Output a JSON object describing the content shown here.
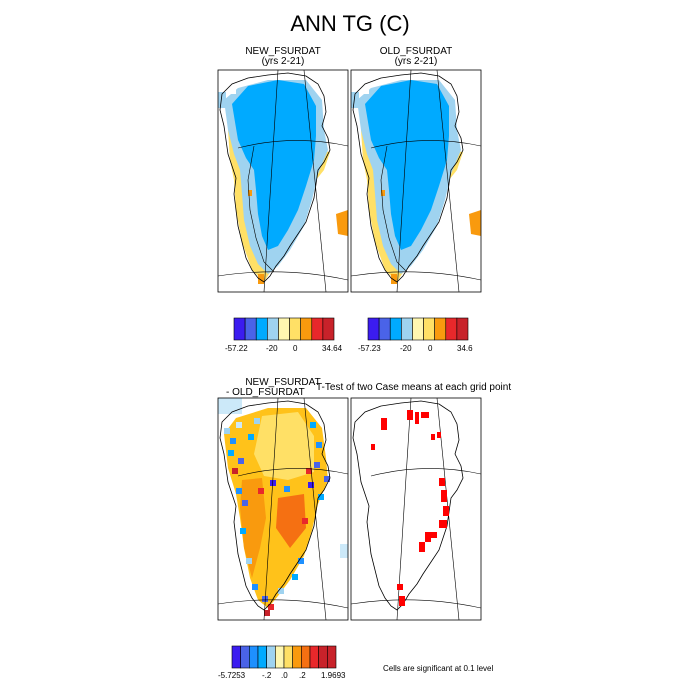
{
  "title": "ANN TG (C)",
  "colors": {
    "dark_blue": "#3b1cf0",
    "blue": "#4a63e8",
    "med_blue": "#1e90ff",
    "sky_blue": "#00aaff",
    "light_blue": "#9fd3f0",
    "pale_blue": "#cce9f9",
    "pale_yellow": "#fff7b0",
    "yellow": "#ffe066",
    "light_orange": "#ffc21a",
    "orange": "#f99a0e",
    "dark_orange": "#f57012",
    "red": "#e8282b",
    "dark_red": "#c8222a",
    "sig_red": "#ff0000"
  },
  "panels": {
    "new": {
      "title": "NEW_FSURDAT",
      "subtitle": "(yrs 2-21)"
    },
    "old": {
      "title": "OLD_FSURDAT",
      "subtitle": "(yrs 2-21)"
    },
    "diff": {
      "title_line1": "NEW_FSURDAT",
      "title_line2": "- OLD_FSURDAT"
    },
    "ttest": {
      "title": "T-Test of two Case means at each grid point"
    }
  },
  "colorbars": {
    "new": {
      "min": "-57.22",
      "mid1": "-20",
      "mid2": "0",
      "max": "34.64"
    },
    "old": {
      "min": "-57.23",
      "mid1": "-20",
      "mid2": "0",
      "max": "34.6"
    },
    "diff": {
      "min": "-5.7253",
      "t1": "-.2",
      "t2": ".0",
      "t3": ".2",
      "max": "1.9693"
    }
  },
  "note": "Cells are significant at 0.1 level",
  "chart_data": [
    {
      "type": "heatmap",
      "title": "NEW_FSURDAT",
      "subtitle": "(yrs 2-21)",
      "colorbar": {
        "min": -57.22,
        "max": 34.64,
        "labels": [
          -57.22,
          -20,
          0,
          34.64
        ]
      }
    },
    {
      "type": "heatmap",
      "title": "OLD_FSURDAT",
      "subtitle": "(yrs 2-21)",
      "colorbar": {
        "min": -57.23,
        "max": 34.6,
        "labels": [
          -57.23,
          -20,
          0,
          34.6
        ]
      }
    },
    {
      "type": "heatmap",
      "title": "NEW_FSURDAT - OLD_FSURDAT",
      "colorbar": {
        "min": -5.7253,
        "max": 1.9693,
        "labels": [
          -5.7253,
          -0.2,
          0.0,
          0.2,
          1.9693
        ]
      }
    },
    {
      "type": "heatmap",
      "title": "T-Test of two Case means at each grid point",
      "annotation": "Cells are significant at 0.1 level"
    }
  ]
}
